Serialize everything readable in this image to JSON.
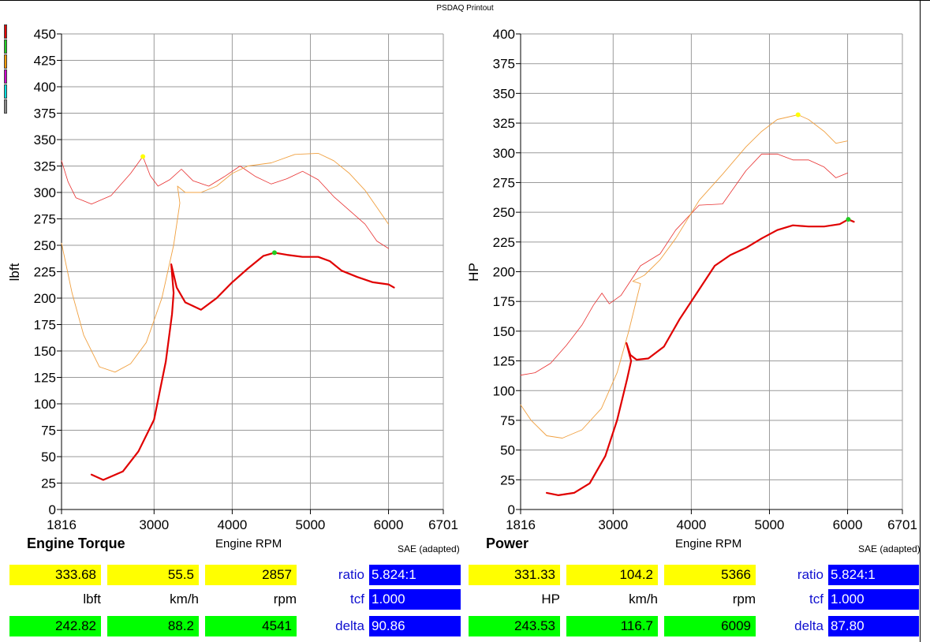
{
  "header": {
    "title": "PSDAQ Printout"
  },
  "legend_colors": [
    "#e00000",
    "#22cc22",
    "#ff9900",
    "#cc00cc",
    "#00dddd",
    "#888888"
  ],
  "panels": [
    {
      "title": "Engine Torque",
      "xlabel": "Engine RPM",
      "ylabel": "lbft",
      "sae": "SAE (adapted)",
      "readout": {
        "yellow": [
          "333.68",
          "55.5",
          "2857"
        ],
        "units": [
          "lbft",
          "km/h",
          "rpm"
        ],
        "green": [
          "242.82",
          "88.2",
          "4541"
        ],
        "params": [
          {
            "label": "ratio",
            "value": "5.824:1"
          },
          {
            "label": "tcf",
            "value": "1.000"
          },
          {
            "label": "delta",
            "value": "90.86"
          }
        ]
      }
    },
    {
      "title": "Power",
      "xlabel": "Engine RPM",
      "ylabel": "HP",
      "sae": "SAE (adapted)",
      "readout": {
        "yellow": [
          "331.33",
          "104.2",
          "5366"
        ],
        "units": [
          "HP",
          "km/h",
          "rpm"
        ],
        "green": [
          "243.53",
          "116.7",
          "6009"
        ],
        "params": [
          {
            "label": "ratio",
            "value": "5.824:1"
          },
          {
            "label": "tcf",
            "value": "1.000"
          },
          {
            "label": "delta",
            "value": "87.80"
          }
        ]
      }
    }
  ],
  "chart_data": [
    {
      "type": "line",
      "title": "Engine Torque",
      "xlabel": "Engine RPM",
      "ylabel": "lbft",
      "xlim": [
        1816,
        6701
      ],
      "ylim": [
        0,
        450
      ],
      "xticks": [
        "1816",
        "3000",
        "4000",
        "5000",
        "6000",
        "6701"
      ],
      "xtick_values": [
        1816,
        3000,
        4000,
        5000,
        6000,
        6701
      ],
      "yticks": [
        0,
        25,
        50,
        75,
        100,
        125,
        150,
        175,
        200,
        225,
        250,
        275,
        300,
        325,
        350,
        375,
        400,
        425,
        450
      ],
      "grid": true,
      "series": [
        {
          "color": "#e83030",
          "width": 0.8,
          "points": [
            [
              1816,
              330
            ],
            [
              1900,
              310
            ],
            [
              2000,
              295
            ],
            [
              2200,
              289
            ],
            [
              2450,
              297
            ],
            [
              2700,
              318
            ],
            [
              2857,
              334
            ],
            [
              2950,
              316
            ],
            [
              3050,
              306
            ],
            [
              3200,
              312
            ],
            [
              3350,
              322
            ],
            [
              3500,
              311
            ],
            [
              3700,
              306
            ],
            [
              3900,
              315
            ],
            [
              4100,
              325
            ],
            [
              4300,
              315
            ],
            [
              4500,
              308
            ],
            [
              4700,
              313
            ],
            [
              4900,
              320
            ],
            [
              5100,
              312
            ],
            [
              5300,
              296
            ],
            [
              5500,
              283
            ],
            [
              5700,
              270
            ],
            [
              5850,
              254
            ],
            [
              6000,
              247
            ]
          ]
        },
        {
          "color": "#f0a040",
          "width": 0.9,
          "points": [
            [
              1816,
              252
            ],
            [
              1950,
              205
            ],
            [
              2100,
              165
            ],
            [
              2300,
              135
            ],
            [
              2500,
              130
            ],
            [
              2700,
              138
            ],
            [
              2900,
              158
            ],
            [
              3100,
              200
            ],
            [
              3250,
              250
            ],
            [
              3330,
              290
            ],
            [
              3300,
              306
            ],
            [
              3400,
              300
            ],
            [
              3600,
              300
            ],
            [
              3800,
              306
            ],
            [
              4000,
              318
            ],
            [
              4200,
              325
            ],
            [
              4500,
              328
            ],
            [
              4800,
              336
            ],
            [
              5100,
              337
            ],
            [
              5300,
              330
            ],
            [
              5500,
              318
            ],
            [
              5700,
              302
            ],
            [
              5850,
              286
            ],
            [
              6000,
              270
            ]
          ]
        },
        {
          "color": "#e00000",
          "width": 2.2,
          "points": [
            [
              2200,
              33
            ],
            [
              2350,
              28
            ],
            [
              2600,
              36
            ],
            [
              2800,
              55
            ],
            [
              3000,
              85
            ],
            [
              3150,
              140
            ],
            [
              3230,
              185
            ],
            [
              3250,
              205
            ],
            [
              3220,
              232
            ],
            [
              3290,
              210
            ],
            [
              3400,
              196
            ],
            [
              3600,
              189
            ],
            [
              3800,
              200
            ],
            [
              4000,
              215
            ],
            [
              4200,
              228
            ],
            [
              4400,
              240
            ],
            [
              4541,
              243
            ],
            [
              4700,
              241
            ],
            [
              4900,
              239
            ],
            [
              5100,
              239
            ],
            [
              5250,
              235
            ],
            [
              5400,
              226
            ],
            [
              5600,
              220
            ],
            [
              5800,
              215
            ],
            [
              6000,
              213
            ],
            [
              6070,
              210
            ]
          ]
        }
      ],
      "markers": [
        {
          "x": 2857,
          "y": 334,
          "color": "#ffff00"
        },
        {
          "x": 4541,
          "y": 243,
          "color": "#22cc22"
        }
      ]
    },
    {
      "type": "line",
      "title": "Power",
      "xlabel": "Engine RPM",
      "ylabel": "HP",
      "xlim": [
        1816,
        6701
      ],
      "ylim": [
        0,
        400
      ],
      "xticks": [
        "1816",
        "3000",
        "4000",
        "5000",
        "6000",
        "6701"
      ],
      "xtick_values": [
        1816,
        3000,
        4000,
        5000,
        6000,
        6701
      ],
      "yticks": [
        0,
        25,
        50,
        75,
        100,
        125,
        150,
        175,
        200,
        225,
        250,
        275,
        300,
        325,
        350,
        375,
        400
      ],
      "grid": true,
      "series": [
        {
          "color": "#e83030",
          "width": 0.8,
          "points": [
            [
              1816,
              113
            ],
            [
              2000,
              115
            ],
            [
              2200,
              123
            ],
            [
              2400,
              138
            ],
            [
              2600,
              155
            ],
            [
              2750,
              172
            ],
            [
              2857,
              182
            ],
            [
              2950,
              173
            ],
            [
              3100,
              180
            ],
            [
              3350,
              205
            ],
            [
              3600,
              215
            ],
            [
              3800,
              235
            ],
            [
              4100,
              256
            ],
            [
              4400,
              257
            ],
            [
              4700,
              285
            ],
            [
              4900,
              299
            ],
            [
              5100,
              299
            ],
            [
              5300,
              294
            ],
            [
              5500,
              294
            ],
            [
              5700,
              288
            ],
            [
              5850,
              279
            ],
            [
              6000,
              283
            ]
          ]
        },
        {
          "color": "#f0a040",
          "width": 0.9,
          "points": [
            [
              1816,
              88
            ],
            [
              1950,
              75
            ],
            [
              2150,
              62
            ],
            [
              2350,
              60
            ],
            [
              2600,
              67
            ],
            [
              2850,
              85
            ],
            [
              3050,
              115
            ],
            [
              3200,
              150
            ],
            [
              3320,
              182
            ],
            [
              3350,
              190
            ],
            [
              3250,
              192
            ],
            [
              3400,
              197
            ],
            [
              3600,
              210
            ],
            [
              3800,
              228
            ],
            [
              4100,
              260
            ],
            [
              4400,
              282
            ],
            [
              4700,
              305
            ],
            [
              4900,
              318
            ],
            [
              5100,
              328
            ],
            [
              5366,
              332
            ],
            [
              5500,
              328
            ],
            [
              5700,
              318
            ],
            [
              5850,
              308
            ],
            [
              6000,
              310
            ]
          ]
        },
        {
          "color": "#e00000",
          "width": 2.2,
          "points": [
            [
              2150,
              14
            ],
            [
              2300,
              12
            ],
            [
              2500,
              14
            ],
            [
              2700,
              22
            ],
            [
              2900,
              45
            ],
            [
              3050,
              75
            ],
            [
              3180,
              110
            ],
            [
              3230,
              125
            ],
            [
              3170,
              140
            ],
            [
              3220,
              130
            ],
            [
              3300,
              126
            ],
            [
              3450,
              127
            ],
            [
              3650,
              137
            ],
            [
              3850,
              160
            ],
            [
              4100,
              185
            ],
            [
              4300,
              205
            ],
            [
              4500,
              214
            ],
            [
              4700,
              220
            ],
            [
              4900,
              228
            ],
            [
              5100,
              235
            ],
            [
              5300,
              239
            ],
            [
              5500,
              238
            ],
            [
              5700,
              238
            ],
            [
              5900,
              240
            ],
            [
              6009,
              244
            ],
            [
              6080,
              242
            ]
          ]
        }
      ],
      "markers": [
        {
          "x": 5366,
          "y": 332,
          "color": "#ffff00"
        },
        {
          "x": 6009,
          "y": 244,
          "color": "#22cc22"
        }
      ]
    }
  ]
}
